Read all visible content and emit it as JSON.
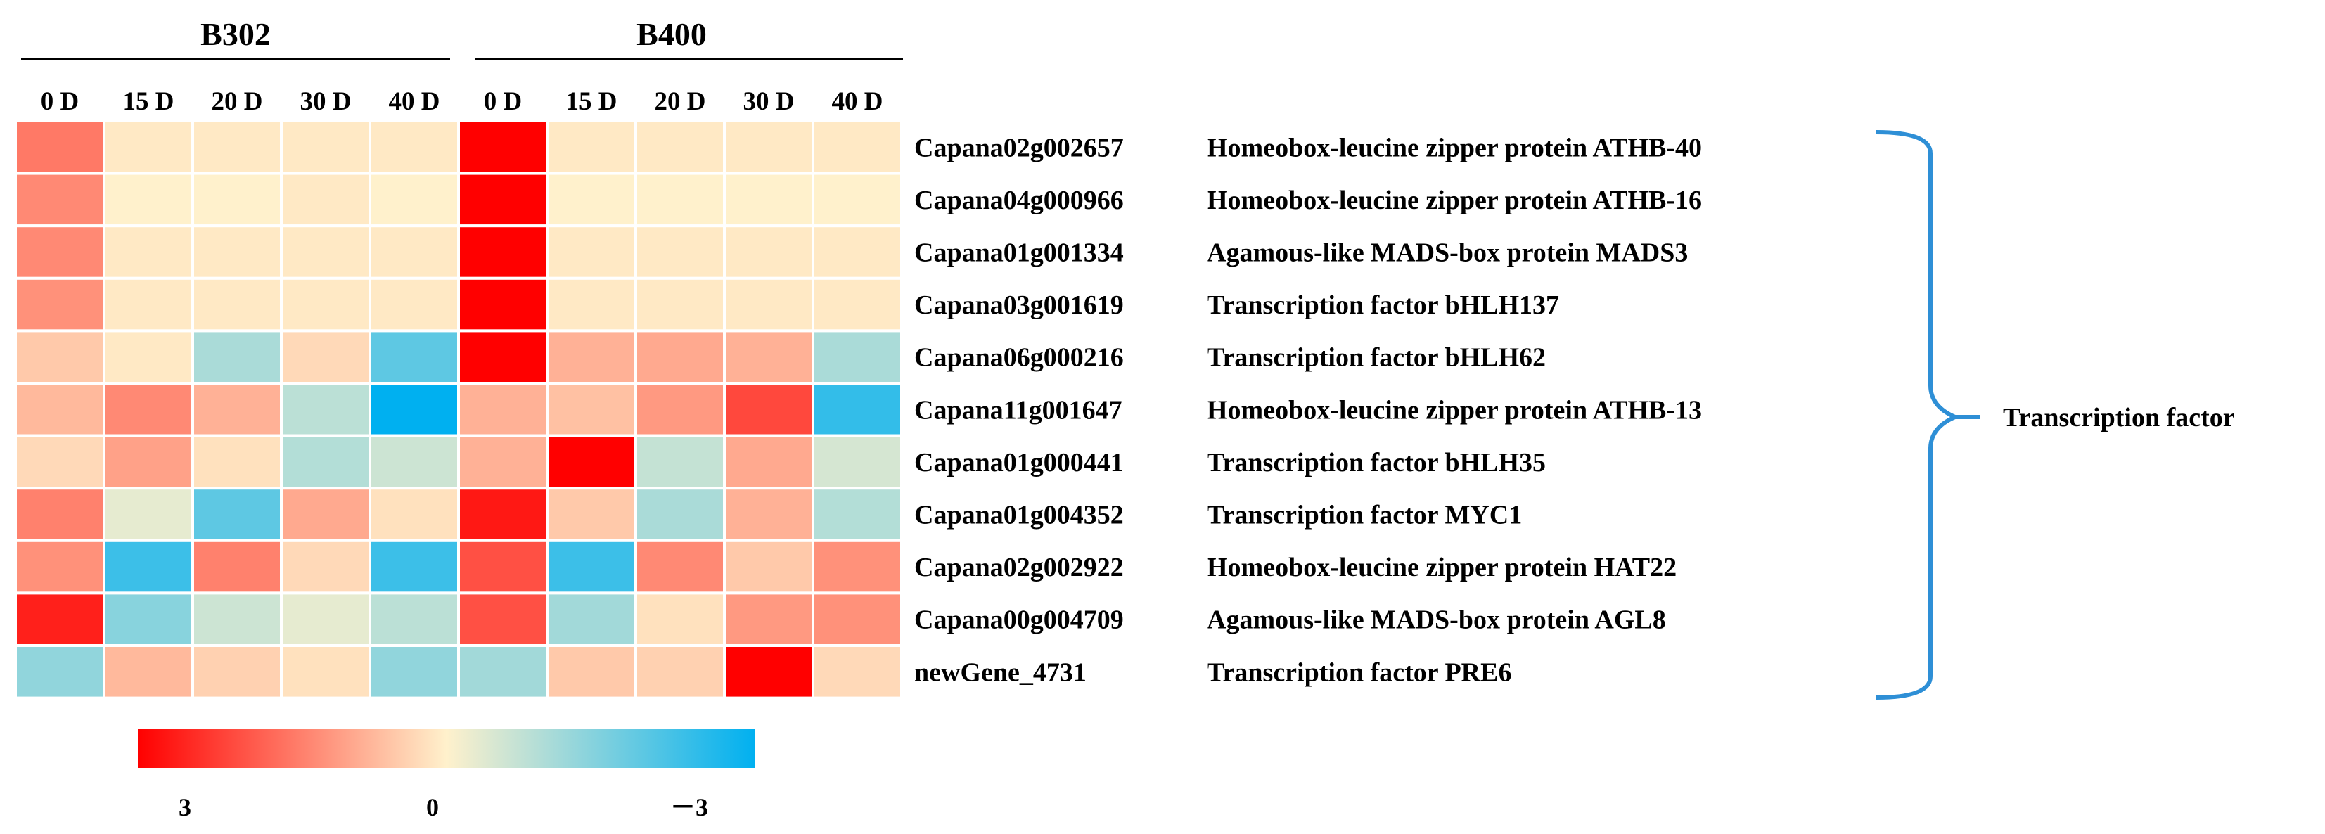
{
  "chart_data": {
    "type": "heatmap",
    "groups": [
      {
        "label": "B302",
        "columns": [
          "0 D",
          "15 D",
          "20 D",
          "30 D",
          "40 D"
        ]
      },
      {
        "label": "B400",
        "columns": [
          "0 D",
          "15 D",
          "20 D",
          "30 D",
          "40 D"
        ]
      }
    ],
    "rows": [
      {
        "gene_id": "Capana02g002657",
        "annotation": "Homeobox-leucine zipper protein ATHB-40",
        "values": [
          1.5,
          0.1,
          0.1,
          0.1,
          0.1,
          3.0,
          0.1,
          0.1,
          0.1,
          0.1
        ]
      },
      {
        "gene_id": "Capana04g000966",
        "annotation": "Homeobox-leucine zipper protein ATHB-16",
        "values": [
          1.3,
          0.0,
          0.0,
          0.1,
          0.0,
          3.0,
          0.0,
          0.0,
          0.0,
          0.0
        ]
      },
      {
        "gene_id": "Capana01g001334",
        "annotation": "Agamous-like MADS-box protein MADS3",
        "values": [
          1.3,
          0.1,
          0.1,
          0.1,
          0.1,
          3.0,
          0.1,
          0.1,
          0.1,
          0.1
        ]
      },
      {
        "gene_id": "Capana03g001619",
        "annotation": "Transcription factor bHLH137",
        "values": [
          1.2,
          0.1,
          0.1,
          0.1,
          0.1,
          3.0,
          0.1,
          0.1,
          0.1,
          0.1
        ]
      },
      {
        "gene_id": "Capana06g000216",
        "annotation": "Transcription factor bHLH62",
        "values": [
          0.5,
          0.1,
          -1.0,
          0.3,
          -1.9,
          3.0,
          0.8,
          0.9,
          0.8,
          -1.0
        ]
      },
      {
        "gene_id": "Capana11g001647",
        "annotation": "Homeobox-leucine zipper protein ATHB-13",
        "values": [
          0.7,
          1.3,
          0.8,
          -0.8,
          -3.0,
          0.8,
          0.6,
          1.1,
          2.1,
          -2.4
        ]
      },
      {
        "gene_id": "Capana01g000441",
        "annotation": "Transcription factor bHLH35",
        "values": [
          0.3,
          1.0,
          0.2,
          -0.9,
          -0.6,
          0.8,
          3.0,
          -0.7,
          0.9,
          -0.5
        ]
      },
      {
        "gene_id": "Capana01g004352",
        "annotation": "Transcription factor MYC1",
        "values": [
          1.4,
          -0.3,
          -1.9,
          0.9,
          0.2,
          2.7,
          0.5,
          -1.0,
          0.8,
          -0.9
        ]
      },
      {
        "gene_id": "Capana02g002922",
        "annotation": "Homeobox-leucine zipper protein HAT22",
        "values": [
          1.2,
          -2.3,
          1.4,
          0.3,
          -2.3,
          2.0,
          -2.3,
          1.3,
          0.5,
          1.2
        ]
      },
      {
        "gene_id": "Capana00g004709",
        "annotation": "Agamous-like MADS-box protein AGL8",
        "values": [
          2.6,
          -1.4,
          -0.6,
          -0.3,
          -0.8,
          2.0,
          -1.1,
          0.2,
          1.1,
          1.2
        ]
      },
      {
        "gene_id": "newGene_4731",
        "annotation": "Transcription factor PRE6",
        "values": [
          -1.3,
          0.7,
          0.4,
          0.2,
          -1.3,
          -1.1,
          0.5,
          0.4,
          3.0,
          0.3
        ]
      }
    ],
    "category": "Transcription factor",
    "colorbar": {
      "ticks": [
        "3",
        "0",
        "－3"
      ],
      "min": -3,
      "max": 3,
      "colors": [
        "#ff0000",
        "#fff1cc",
        "#00b0f0"
      ]
    },
    "grid_line_color": "#ffffff",
    "bracket_color": "#2e8fd6"
  }
}
